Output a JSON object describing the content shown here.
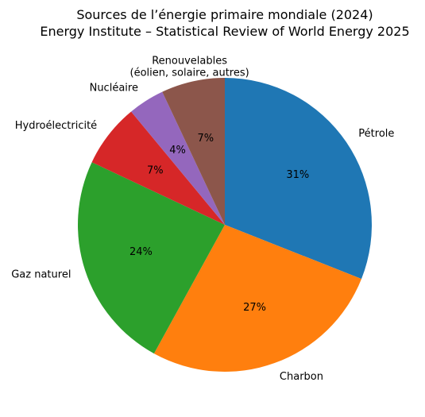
{
  "chart_data": {
    "type": "pie",
    "title": "Sources de l’énergie primaire mondiale (2024)",
    "subtitle": "Energy Institute – Statistical Review of World Energy 2025",
    "start_angle_deg": 90,
    "direction": "clockwise",
    "legend": "none",
    "slices": [
      {
        "label": "Pétrole",
        "value": 31,
        "pct_label": "31%",
        "color": "#1f77b4"
      },
      {
        "label": "Charbon",
        "value": 27,
        "pct_label": "27%",
        "color": "#ff7f0e"
      },
      {
        "label": "Gaz naturel",
        "value": 24,
        "pct_label": "24%",
        "color": "#2ca02c"
      },
      {
        "label": "Hydroélectricité",
        "value": 7,
        "pct_label": "7%",
        "color": "#d62728"
      },
      {
        "label": "Nucléaire",
        "value": 4,
        "pct_label": "4%",
        "color": "#9467bd"
      },
      {
        "label_lines": [
          "Renouvelables",
          "(éolien, solaire, autres)"
        ],
        "value": 7,
        "pct_label": "7%",
        "color": "#8c564b"
      }
    ]
  }
}
